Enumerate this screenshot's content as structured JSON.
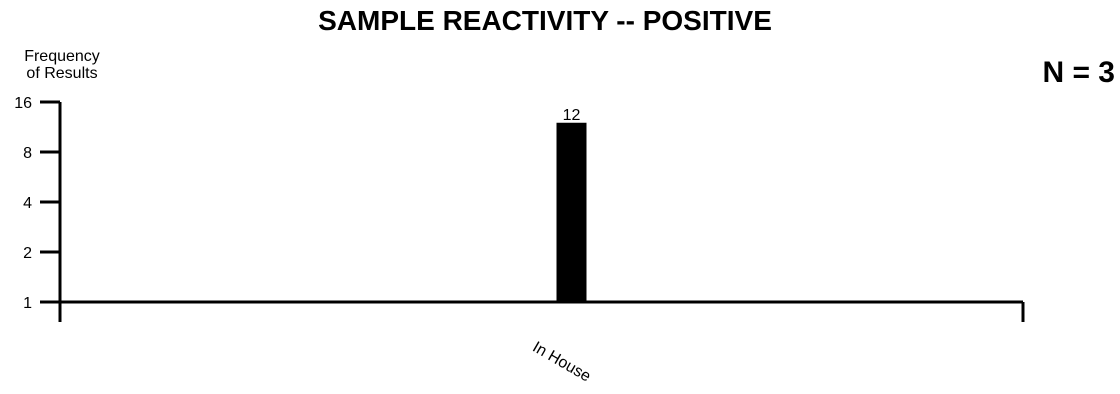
{
  "chart_data": {
    "type": "bar",
    "title": "SAMPLE REACTIVITY -- POSITIVE",
    "ylabel_line1": "Frequency",
    "ylabel_line2": "of Results",
    "xlabel": "",
    "annotation": "N = 3",
    "y_scale": "log2",
    "ylim": [
      1,
      16
    ],
    "y_ticks": [
      {
        "value": 1,
        "label": "1"
      },
      {
        "value": 2,
        "label": "2"
      },
      {
        "value": 4,
        "label": "4"
      },
      {
        "value": 8,
        "label": "8"
      },
      {
        "value": 16,
        "label": "16"
      }
    ],
    "categories": [
      "In House"
    ],
    "values": [
      12
    ],
    "data_labels": [
      "12"
    ],
    "grid": false,
    "legend": "none",
    "bar_color": "#000000",
    "axis_color": "#000000"
  }
}
